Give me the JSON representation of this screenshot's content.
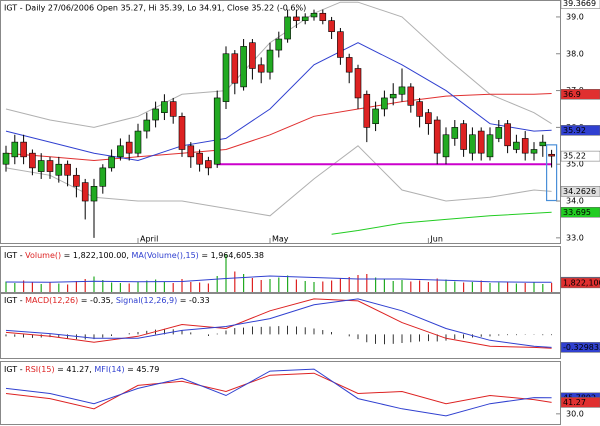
{
  "chart_data": {
    "type": "candlestick",
    "title": "IGT - Daily 27/06/2006 Open 35.27, Hi 35.39, Lo 34.91, Close 35.22 (-0.6%)",
    "categories": [
      null,
      null,
      null,
      null,
      null,
      null,
      null,
      null,
      null,
      null,
      null,
      null,
      null,
      null,
      null,
      "April",
      null,
      null,
      null,
      null,
      null,
      null,
      null,
      null,
      null,
      null,
      null,
      null,
      null,
      null,
      "May",
      null,
      null,
      null,
      null,
      null,
      null,
      null,
      null,
      null,
      null,
      null,
      null,
      null,
      null,
      null,
      null,
      null,
      "Jun",
      null,
      null,
      null,
      null,
      null,
      null,
      null,
      null,
      null,
      null,
      null,
      null,
      null,
      null
    ],
    "open": [
      35.0,
      35.2,
      35.6,
      35.3,
      34.8,
      35.1,
      34.7,
      35.0,
      34.7,
      34.5,
      34.0,
      34.4,
      34.9,
      35.2,
      35.6,
      35.3,
      35.9,
      36.2,
      36.4,
      36.7,
      36.3,
      35.5,
      35.3,
      35.1,
      35.0,
      36.7,
      38.0,
      37.1,
      38.3,
      37.7,
      37.5,
      38.1,
      38.4,
      39.0,
      38.9,
      39.0,
      39.1,
      38.9,
      38.6,
      37.9,
      37.6,
      36.9,
      36.1,
      36.5,
      36.8,
      36.9,
      37.1,
      36.7,
      36.4,
      36.2,
      35.2,
      35.7,
      36.1,
      35.3,
      35.9,
      35.2,
      35.7,
      36.1,
      35.4,
      35.7,
      35.3,
      35.5,
      35.27
    ],
    "high": [
      35.5,
      35.8,
      35.8,
      35.4,
      35.3,
      35.2,
      35.2,
      35.1,
      34.9,
      34.6,
      34.6,
      35.0,
      35.4,
      35.7,
      35.8,
      36.1,
      36.4,
      36.7,
      36.9,
      36.8,
      36.4,
      35.6,
      35.4,
      35.2,
      37.0,
      38.2,
      38.1,
      38.4,
      38.4,
      37.9,
      38.3,
      38.6,
      39.2,
      39.2,
      39.1,
      39.2,
      39.2,
      39.0,
      38.7,
      38.0,
      37.7,
      37.0,
      36.7,
      37.0,
      37.2,
      37.6,
      37.2,
      36.8,
      36.5,
      36.3,
      36.0,
      36.2,
      36.2,
      36.0,
      36.0,
      36.0,
      36.2,
      36.2,
      35.8,
      35.9,
      35.6,
      35.8,
      35.39
    ],
    "low": [
      34.8,
      35.0,
      35.0,
      34.7,
      34.6,
      34.6,
      34.5,
      34.4,
      34.1,
      33.5,
      33.0,
      34.2,
      34.8,
      35.1,
      35.1,
      35.2,
      35.7,
      36.0,
      36.2,
      36.1,
      35.2,
      34.9,
      34.8,
      34.7,
      34.9,
      36.5,
      36.9,
      37.0,
      37.3,
      37.2,
      37.3,
      37.9,
      38.3,
      38.7,
      38.8,
      38.9,
      38.8,
      38.4,
      37.7,
      37.2,
      36.5,
      35.6,
      35.9,
      36.3,
      36.6,
      36.7,
      36.4,
      36.0,
      35.8,
      35.0,
      35.0,
      35.5,
      35.2,
      35.1,
      35.1,
      35.1,
      35.6,
      35.3,
      35.3,
      35.1,
      35.1,
      35.2,
      34.91
    ],
    "close": [
      35.3,
      35.6,
      35.2,
      34.9,
      35.1,
      34.8,
      35.0,
      34.7,
      34.4,
      34.0,
      34.4,
      34.9,
      35.2,
      35.5,
      35.3,
      35.9,
      36.2,
      36.5,
      36.7,
      36.3,
      35.4,
      35.2,
      35.0,
      34.9,
      36.8,
      38.0,
      37.2,
      38.2,
      37.6,
      37.5,
      38.1,
      38.4,
      39.0,
      38.9,
      39.0,
      39.1,
      38.9,
      38.6,
      37.9,
      37.5,
      36.8,
      36.0,
      36.5,
      36.8,
      36.9,
      37.1,
      36.6,
      36.3,
      36.1,
      35.3,
      35.8,
      36.0,
      35.4,
      35.8,
      35.3,
      35.8,
      36.0,
      35.5,
      35.6,
      35.3,
      35.4,
      35.6,
      35.22
    ],
    "up_color": "#22aa22",
    "down_color": "#dd2222",
    "ylim": [
      32.86,
      39.46
    ],
    "yticks": [
      {
        "value": 33,
        "label": "33.0"
      },
      {
        "value": 34,
        "label": "34.0"
      },
      {
        "value": 35,
        "label": "35.0"
      },
      {
        "value": 36,
        "label": "36.0"
      },
      {
        "value": 37,
        "label": "37.0"
      },
      {
        "value": 38,
        "label": "38.0"
      },
      {
        "value": 39,
        "label": "39.0"
      }
    ],
    "overlays": [
      {
        "color": "#b0b0b0",
        "x": [
          0,
          5,
          10,
          15,
          20,
          25,
          30,
          35,
          38,
          40,
          45,
          50,
          55,
          60,
          62
        ],
        "values": [
          36.5,
          36.2,
          36.0,
          36.3,
          36.9,
          37.0,
          38.3,
          39.1,
          39.4,
          39.4,
          39.0,
          37.9,
          36.9,
          36.4,
          36.1
        ]
      },
      {
        "color": "#b0b0b0",
        "x": [
          0,
          5,
          10,
          15,
          20,
          25,
          30,
          35,
          40,
          45,
          50,
          55,
          60,
          62
        ],
        "values": [
          34.9,
          34.7,
          34.1,
          34.0,
          34.0,
          33.8,
          33.6,
          34.6,
          35.5,
          34.3,
          34.0,
          34.1,
          34.3,
          34.2626
        ]
      },
      {
        "color": "#e03030",
        "x": [
          0,
          5,
          10,
          15,
          20,
          25,
          30,
          35,
          40,
          45,
          50,
          55,
          60,
          62
        ],
        "values": [
          35.3,
          35.2,
          35.1,
          35.2,
          35.3,
          35.4,
          35.8,
          36.3,
          36.5,
          36.7,
          36.85,
          36.9,
          36.9,
          36.92
        ]
      },
      {
        "color": "#3040d0",
        "x": [
          0,
          5,
          10,
          15,
          20,
          25,
          30,
          35,
          40,
          45,
          50,
          55,
          60,
          62
        ],
        "values": [
          35.9,
          35.6,
          35.3,
          35.1,
          35.5,
          35.7,
          36.5,
          37.7,
          38.3,
          37.7,
          37.0,
          36.1,
          35.9,
          35.92
        ]
      },
      {
        "color": "#22cc22",
        "x": [
          37,
          40,
          45,
          50,
          55,
          62
        ],
        "values": [
          33.1,
          33.2,
          33.4,
          33.5,
          33.6,
          33.695
        ]
      }
    ],
    "hline": {
      "value": 35.0,
      "from": 24,
      "to": 62,
      "color": "#cc00cc"
    },
    "price_labels": [
      {
        "value": 39.3669,
        "label": "39.3669",
        "bg": "#ffffff",
        "fg": "#000000"
      },
      {
        "value": 36.9,
        "label": "36.9",
        "bg": "#e03030",
        "fg": "#ffffff"
      },
      {
        "value": 35.92,
        "label": "35.92",
        "bg": "#3040d0",
        "fg": "#ffffff"
      },
      {
        "value": 35.22,
        "label": "35.22",
        "bg": "#ffffff",
        "fg": "#000000"
      },
      {
        "value": 34.2626,
        "label": "34.2626",
        "bg": "#dddddd",
        "fg": "#000000"
      },
      {
        "value": 33.695,
        "label": "33.695",
        "bg": "#22cc22",
        "fg": "#ffffff"
      }
    ],
    "volume": {
      "label": [
        "IGT - ",
        "Volume()",
        " = 1,822,100.00, ",
        "MA(Volume(),15)",
        " = 1,964,605.38"
      ],
      "label_colors": [
        "#000000",
        "#dd2222",
        "#000000",
        "#3040d0",
        "#000000"
      ],
      "ylim": [
        0,
        9000000
      ],
      "values": [
        2100000,
        1800000,
        2300000,
        1900000,
        1600000,
        2000000,
        1700000,
        1500000,
        2200000,
        2600000,
        3100000,
        2400000,
        1900000,
        1800000,
        1700000,
        2000000,
        2300000,
        2500000,
        2100000,
        1800000,
        2600000,
        2000000,
        1900000,
        1700000,
        3200000,
        7500000,
        4100000,
        3600000,
        2800000,
        2400000,
        2600000,
        2900000,
        3300000,
        2500000,
        2200000,
        2000000,
        2100000,
        2300000,
        2800000,
        3000000,
        3400000,
        3600000,
        2900000,
        2500000,
        2200000,
        2400000,
        2100000,
        2300000,
        2000000,
        2700000,
        2500000,
        2100000,
        1900000,
        2000000,
        2300000,
        1800000,
        1900000,
        2100000,
        1700000,
        1800000,
        1900000,
        1600000,
        1822100
      ],
      "ma": {
        "color": "#3040d0",
        "x": [
          0,
          5,
          10,
          15,
          20,
          25,
          30,
          35,
          40,
          45,
          50,
          55,
          60,
          62
        ],
        "values": [
          2000000,
          1950000,
          2150000,
          2050000,
          2100000,
          2700000,
          3200000,
          2900000,
          2600000,
          2600000,
          2350000,
          2050000,
          1950000,
          1964605.38
        ]
      },
      "value_labels": [
        {
          "value": 1964605.38,
          "label": "1,964,605",
          "bg": "#3040d0",
          "fg": "#ffffff"
        },
        {
          "value": 1822100,
          "label": "1,822,100",
          "bg": "#e03030",
          "fg": "#ffffff"
        }
      ]
    },
    "macd": {
      "label": [
        "IGT - ",
        "MACD(12,26)",
        " = -0.35, ",
        "Signal(12,26,9)",
        " = -0.33"
      ],
      "label_colors": [
        "#000000",
        "#dd2222",
        "#000000",
        "#3040d0",
        "#000000"
      ],
      "ylim": [
        -0.6,
        1.0
      ],
      "histogram": [
        -0.05,
        -0.06,
        -0.08,
        -0.09,
        -0.08,
        -0.07,
        -0.08,
        -0.1,
        -0.12,
        -0.13,
        -0.12,
        -0.08,
        -0.04,
        0.0,
        0.03,
        0.06,
        0.09,
        0.12,
        0.14,
        0.13,
        0.1,
        0.05,
        0.0,
        -0.04,
        0.02,
        0.1,
        0.16,
        0.17,
        0.2,
        0.19,
        0.2,
        0.21,
        0.22,
        0.2,
        0.18,
        0.15,
        0.11,
        0.06,
        0.0,
        -0.05,
        -0.12,
        -0.2,
        -0.24,
        -0.25,
        -0.24,
        -0.22,
        -0.2,
        -0.18,
        -0.17,
        -0.18,
        -0.16,
        -0.12,
        -0.1,
        -0.08,
        -0.06,
        -0.05,
        -0.03,
        -0.02,
        -0.02,
        -0.01,
        -0.01,
        -0.02,
        -0.02
      ],
      "lines": [
        {
          "color": "#dd2222",
          "x": [
            0,
            5,
            10,
            15,
            20,
            25,
            30,
            35,
            40,
            45,
            50,
            55,
            60,
            62
          ],
          "values": [
            0.05,
            -0.05,
            -0.2,
            -0.05,
            0.25,
            0.15,
            0.6,
            0.9,
            0.85,
            0.3,
            -0.1,
            -0.3,
            -0.33,
            -0.35
          ]
        },
        {
          "color": "#3040d0",
          "x": [
            0,
            5,
            10,
            15,
            20,
            25,
            30,
            35,
            40,
            45,
            50,
            55,
            60,
            62
          ],
          "values": [
            0.1,
            0.02,
            -0.1,
            -0.1,
            0.1,
            0.2,
            0.4,
            0.75,
            0.9,
            0.6,
            0.15,
            -0.15,
            -0.3,
            -0.33
          ]
        }
      ],
      "value_labels": [
        {
          "value": -0.329833,
          "label": "-0.329833",
          "bg": "#3040d0",
          "fg": "#ffffff"
        }
      ]
    },
    "rsi": {
      "label": [
        "IGT - ",
        "RSI(15)",
        " = 41.27, ",
        "MFI(14)",
        " = 45.79"
      ],
      "label_colors": [
        "#000000",
        "#dd2222",
        "#000000",
        "#3040d0",
        "#000000"
      ],
      "ylim": [
        20,
        80
      ],
      "yticks": [
        {
          "value": 30,
          "label": "30.0"
        }
      ],
      "lines": [
        {
          "color": "#dd2222",
          "x": [
            0,
            5,
            10,
            15,
            20,
            25,
            30,
            35,
            40,
            45,
            50,
            55,
            60,
            62
          ],
          "values": [
            50,
            45,
            35,
            58,
            62,
            52,
            68,
            70,
            50,
            52,
            40,
            48,
            44,
            41.27
          ]
        },
        {
          "color": "#3040d0",
          "x": [
            0,
            5,
            10,
            15,
            20,
            25,
            30,
            35,
            40,
            45,
            50,
            55,
            60,
            62
          ],
          "values": [
            55,
            50,
            40,
            55,
            65,
            48,
            72,
            74,
            45,
            35,
            28,
            40,
            46,
            45.79
          ]
        }
      ],
      "value_labels": [
        {
          "value": 45.79,
          "label": "45.7892",
          "bg": "#3040d0",
          "fg": "#ffffff"
        },
        {
          "value": 41.27,
          "label": "41.27",
          "bg": "#e03030",
          "fg": "#ffffff"
        }
      ]
    }
  }
}
